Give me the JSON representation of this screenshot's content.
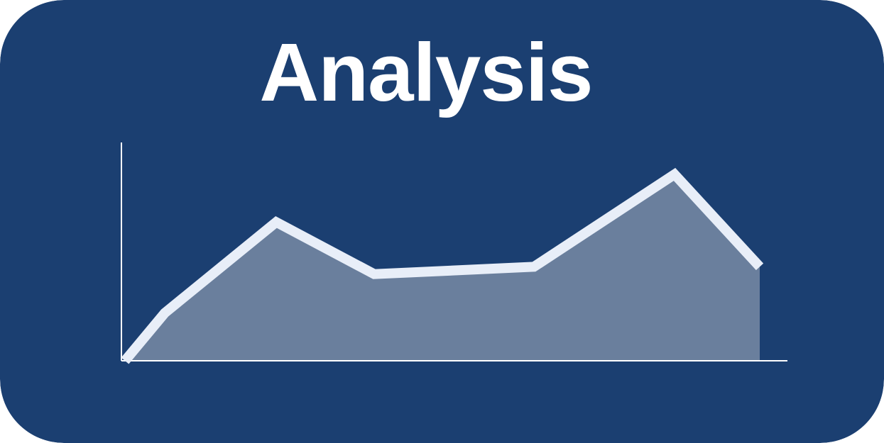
{
  "colors": {
    "background": "#1b3f71",
    "line": "#e8eef8",
    "area_fill": "#6a7f9d",
    "axis": "#ffffff"
  },
  "chart_data": {
    "type": "area",
    "title": "Analysis",
    "xlabel": "",
    "ylabel": "",
    "x": [
      0,
      1,
      2,
      3,
      4,
      5,
      6
    ],
    "values": [
      0.0,
      21.6,
      62.7,
      39.2,
      42.5,
      84.3,
      42.5
    ],
    "ylim": [
      0,
      100
    ],
    "grid": false,
    "legend": "none"
  }
}
